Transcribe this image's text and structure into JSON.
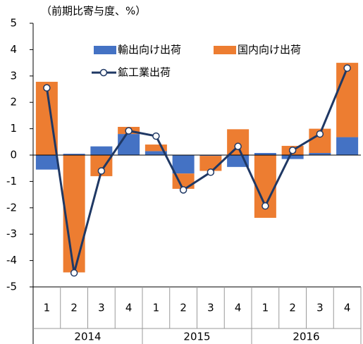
{
  "chart_data": {
    "type": "bar",
    "stacked": true,
    "y_axis_label": "（前期比寄与度、%）",
    "categories": [
      "1",
      "2",
      "3",
      "4",
      "1",
      "2",
      "3",
      "4",
      "1",
      "2",
      "3",
      "4"
    ],
    "groups": [
      "2014",
      "2015",
      "2016"
    ],
    "series": [
      {
        "name": "輸出向け出荷",
        "type": "bar",
        "color": "#4472c4",
        "values": [
          -0.55,
          0.05,
          0.33,
          0.8,
          0.15,
          -0.7,
          -0.03,
          -0.45,
          0.08,
          -0.15,
          0.08,
          0.68
        ]
      },
      {
        "name": "国内向け出荷",
        "type": "bar",
        "color": "#ed7d31",
        "values": [
          2.78,
          -4.45,
          -0.8,
          0.27,
          0.25,
          -0.58,
          -0.57,
          0.98,
          -2.38,
          0.35,
          0.92,
          2.82
        ]
      },
      {
        "name": "鉱工業出荷",
        "type": "line",
        "color": "#1f3864",
        "values": [
          2.55,
          -4.47,
          -0.6,
          0.92,
          0.72,
          -1.32,
          -0.65,
          0.33,
          -1.93,
          0.18,
          0.8,
          3.3
        ]
      }
    ],
    "ylim": [
      -5,
      5
    ],
    "yticks": [
      5,
      4,
      3,
      2,
      1,
      0,
      -1,
      -2,
      -3,
      -4,
      -5
    ],
    "grid": false
  }
}
